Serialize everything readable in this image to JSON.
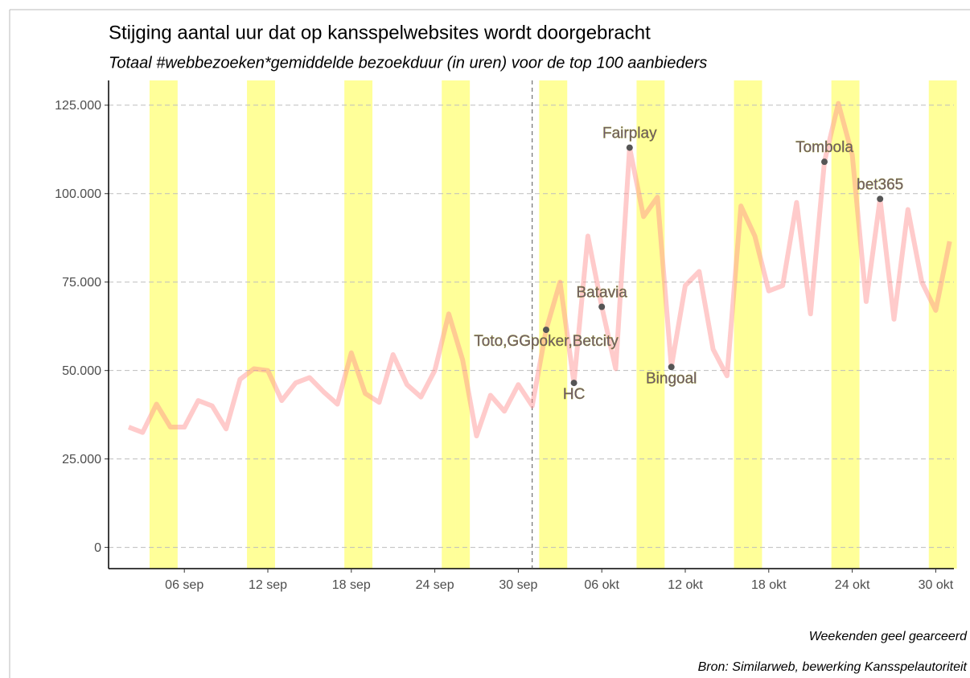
{
  "chart_data": {
    "type": "line",
    "title": "Stijging aantal uur dat op kansspelwebsites wordt doorgebracht",
    "subtitle": "Totaal #webbezoeken*gemiddelde bezoekduur (in uren) voor de top 100 aanbieders",
    "captions": [
      "Weekenden geel gearceerd",
      "Bron: Similarweb, bewerking Kansspelautoriteit"
    ],
    "categories": [
      null,
      null,
      null,
      null,
      "06 sep",
      null,
      null,
      null,
      null,
      null,
      "12 sep",
      null,
      null,
      null,
      null,
      null,
      "18 sep",
      null,
      null,
      null,
      null,
      null,
      "24 sep",
      null,
      null,
      null,
      null,
      null,
      "30 sep",
      null,
      null,
      null,
      null,
      null,
      "06 okt",
      null,
      null,
      null,
      null,
      null,
      "12 okt",
      null,
      null,
      null,
      null,
      null,
      "18 okt",
      null,
      null,
      null,
      null,
      null,
      "24 okt",
      null,
      null,
      null,
      null,
      null,
      "30 okt",
      null
    ],
    "values": [
      34000,
      32500,
      40500,
      34000,
      34000,
      41500,
      40000,
      33500,
      47500,
      50500,
      50000,
      41500,
      46500,
      48000,
      44000,
      40500,
      55000,
      43500,
      41000,
      54500,
      46000,
      42500,
      50000,
      66000,
      53000,
      31500,
      43000,
      38500,
      46000,
      40000,
      61500,
      75000,
      46500,
      88000,
      68000,
      50500,
      113000,
      93500,
      99000,
      51000,
      74000,
      78000,
      56000,
      48500,
      96500,
      88000,
      72500,
      74000,
      97500,
      66000,
      109000,
      125500,
      111000,
      69500,
      98500,
      64500,
      95500,
      75000,
      67000,
      86500
    ],
    "color": "#ff8c8c",
    "weekend": [
      false,
      false,
      true,
      true,
      false,
      false,
      false,
      false,
      false,
      true,
      true,
      false,
      false,
      false,
      false,
      false,
      true,
      true,
      false,
      false,
      false,
      false,
      false,
      true,
      true,
      false,
      false,
      false,
      false,
      false,
      true,
      true,
      false,
      false,
      false,
      false,
      false,
      true,
      true,
      false,
      false,
      false,
      false,
      false,
      true,
      true,
      false,
      false,
      false,
      false,
      false,
      true,
      true,
      false,
      false,
      false,
      false,
      false,
      true,
      true
    ],
    "weekend_color": "#ffff99",
    "vline": 29,
    "annotations": [
      {
        "label": "Toto,GGpoker,Betcity",
        "index": 30,
        "value": 61500,
        "side": "below"
      },
      {
        "label": "HC",
        "index": 32,
        "value": 46500,
        "side": "below"
      },
      {
        "label": "Batavia",
        "index": 34,
        "value": 68000,
        "side": "above"
      },
      {
        "label": "Fairplay",
        "index": 36,
        "value": 113000,
        "side": "above"
      },
      {
        "label": "Bingoal",
        "index": 39,
        "value": 51000,
        "side": "below"
      },
      {
        "label": "Tombola",
        "index": 50,
        "value": 109000,
        "side": "above"
      },
      {
        "label": "bet365",
        "index": 54,
        "value": 98500,
        "side": "above"
      }
    ],
    "ylim": [
      -6000,
      132000
    ],
    "yticks": [
      0,
      {
        "value": 25000,
        "label": "25.000"
      },
      {
        "value": 50000,
        "label": "50.000"
      },
      {
        "value": 75000,
        "label": "75.000"
      },
      {
        "value": 100000,
        "label": "100.000"
      },
      {
        "value": 125000,
        "label": "125.000"
      }
    ],
    "grid": true
  }
}
